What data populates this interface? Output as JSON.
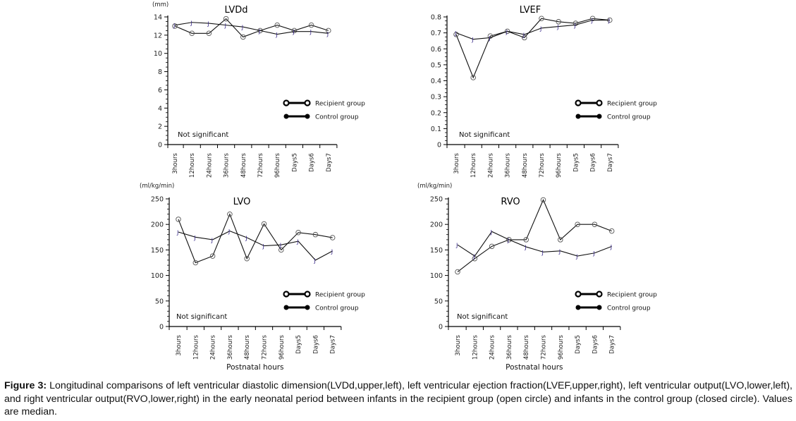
{
  "figure": {
    "caption_label": "Figure 3:",
    "caption_text": " Longitudinal comparisons of left ventricular diastolic dimension(LVDd,upper,left), left ventricular ejection fraction(LVEF,upper,right), left ventricular output(LVO,lower,left), and right ventricular output(RVO,lower,right) in the early neonatal period between infants in the recipient group (open circle) and infants in the control group (closed circle). Values are median."
  },
  "legend": {
    "recipient": "Recipient group",
    "control": "Control group"
  },
  "chart_data": [
    {
      "type": "line",
      "title": "LVDd",
      "unit_label": "(mm)",
      "xlabel": "",
      "ylabel": "",
      "categories": [
        "3hours",
        "12hours",
        "24hours",
        "36hours",
        "48hours",
        "72hours",
        "96hours",
        "Days5",
        "Days6",
        "Days7"
      ],
      "ylim": [
        0,
        14
      ],
      "yticks": [
        0,
        2,
        4,
        6,
        8,
        10,
        12,
        14
      ],
      "yticks_labels": [
        "0",
        "2",
        "4",
        "6",
        "8",
        "10",
        "12",
        "14"
      ],
      "annotation": "Not significant",
      "legend_position": "center-right",
      "series": [
        {
          "name": "Recipient group",
          "marker": "open-circle",
          "values": [
            13.0,
            12.2,
            12.2,
            13.8,
            11.8,
            12.5,
            13.1,
            12.5,
            13.1,
            12.5
          ]
        },
        {
          "name": "Control group",
          "marker": "closed-circle",
          "values": [
            13.1,
            13.4,
            13.3,
            13.1,
            12.9,
            12.5,
            12.1,
            12.4,
            12.4,
            12.2
          ]
        }
      ]
    },
    {
      "type": "line",
      "title": "LVEF",
      "unit_label": "",
      "xlabel": "",
      "ylabel": "",
      "categories": [
        "3hours",
        "12hours",
        "24hours",
        "36hours",
        "48hours",
        "72hours",
        "96hours",
        "Days5",
        "Days6",
        "Days7"
      ],
      "ylim": [
        0,
        0.8
      ],
      "yticks": [
        0,
        0.1,
        0.2,
        0.3,
        0.4,
        0.5,
        0.6,
        0.7,
        0.8
      ],
      "yticks_labels": [
        "0",
        "0.1",
        "0.2",
        "0.3",
        "0.4",
        "0.5",
        "0.6",
        "0.7",
        "0.8"
      ],
      "annotation": "Not significant",
      "legend_position": "center-right",
      "series": [
        {
          "name": "Recipient group",
          "marker": "open-circle",
          "values": [
            0.69,
            0.42,
            0.68,
            0.71,
            0.67,
            0.79,
            0.77,
            0.76,
            0.79,
            0.78
          ]
        },
        {
          "name": "Control group",
          "marker": "closed-circle",
          "values": [
            0.7,
            0.66,
            0.67,
            0.71,
            0.69,
            0.73,
            0.74,
            0.75,
            0.78,
            0.78
          ]
        }
      ]
    },
    {
      "type": "line",
      "title": "LVO",
      "unit_label": "(ml/kg/min)",
      "xlabel": "Postnatal hours",
      "ylabel": "",
      "categories": [
        "3hours",
        "12hours",
        "24hours",
        "36hours",
        "48hours",
        "72hours",
        "96hours",
        "Days5",
        "Days6",
        "Days7"
      ],
      "ylim": [
        0,
        250
      ],
      "yticks": [
        0,
        50,
        100,
        150,
        200,
        250
      ],
      "yticks_labels": [
        "0",
        "50",
        "100",
        "150",
        "200",
        "250"
      ],
      "annotation": "Not significant",
      "legend_position": "center-right",
      "series": [
        {
          "name": "Recipient group",
          "marker": "open-circle",
          "values": [
            210,
            125,
            138,
            220,
            133,
            201,
            150,
            184,
            180,
            174
          ]
        },
        {
          "name": "Control group",
          "marker": "closed-circle",
          "values": [
            185,
            175,
            170,
            187,
            174,
            158,
            160,
            167,
            130,
            148
          ]
        }
      ]
    },
    {
      "type": "line",
      "title": "RVO",
      "unit_label": "(ml/kg/min)",
      "xlabel": "Postnatal hours",
      "ylabel": "",
      "categories": [
        "3hours",
        "12hours",
        "24hours",
        "36hours",
        "48hours",
        "72hours",
        "96hours",
        "Days5",
        "Days6",
        "Days7"
      ],
      "ylim": [
        0,
        250
      ],
      "yticks": [
        0,
        50,
        100,
        150,
        200,
        250
      ],
      "yticks_labels": [
        "0",
        "50",
        "100",
        "150",
        "200",
        "250"
      ],
      "annotation": "Not significant",
      "legend_position": "center-right",
      "series": [
        {
          "name": "Recipient group",
          "marker": "open-circle",
          "values": [
            107,
            133,
            157,
            170,
            170,
            248,
            170,
            200,
            200,
            187
          ]
        },
        {
          "name": "Control group",
          "marker": "closed-circle",
          "values": [
            160,
            138,
            186,
            170,
            156,
            146,
            148,
            138,
            144,
            157
          ]
        }
      ]
    }
  ]
}
